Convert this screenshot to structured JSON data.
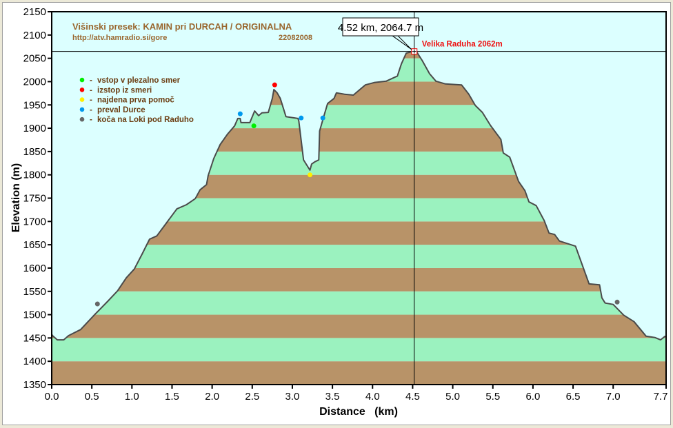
{
  "chart_data": {
    "type": "area",
    "title": "Višinski presek:  KAMIN pri DURCAH / ORIGINALNA",
    "subtitle_url": "http://atv.hamradio.si/gore",
    "subtitle_date": "22082008",
    "xlabel": "Distance   (km)",
    "ylabel": "Elevation (m)",
    "xlim": [
      0,
      7.66
    ],
    "ylim": [
      1350,
      2150
    ],
    "x_ticks": [
      "0.0",
      "0.5",
      "1.0",
      "1.5",
      "2.0",
      "2.5",
      "3.0",
      "3.5",
      "4.0",
      "4.5",
      "5.0",
      "5.5",
      "6.0",
      "6.5",
      "7.0",
      "7.7"
    ],
    "x_tick_values": [
      0,
      0.5,
      1,
      1.5,
      2,
      2.5,
      3,
      3.5,
      4,
      4.5,
      5,
      5.5,
      6,
      6.5,
      7,
      7.66
    ],
    "y_ticks": [
      1350,
      1400,
      1450,
      1500,
      1550,
      1600,
      1650,
      1700,
      1750,
      1800,
      1850,
      1900,
      1950,
      2000,
      2050,
      2100,
      2150
    ],
    "band_step": 50,
    "colors": {
      "plot_bg": "#dcffff",
      "band_a": "#b89368",
      "band_b": "#9bf2bf",
      "line": "#4a4a4a"
    },
    "profile": [
      [
        0,
        1458
      ],
      [
        0.01,
        1455
      ],
      [
        0.07,
        1446
      ],
      [
        0.15,
        1446
      ],
      [
        0.21,
        1455
      ],
      [
        0.36,
        1468
      ],
      [
        0.53,
        1499
      ],
      [
        0.7,
        1529
      ],
      [
        0.82,
        1551
      ],
      [
        0.93,
        1579
      ],
      [
        1.03,
        1598
      ],
      [
        1.13,
        1631
      ],
      [
        1.22,
        1662
      ],
      [
        1.31,
        1669
      ],
      [
        1.44,
        1699
      ],
      [
        1.56,
        1727
      ],
      [
        1.68,
        1736
      ],
      [
        1.79,
        1749
      ],
      [
        1.85,
        1768
      ],
      [
        1.93,
        1779
      ],
      [
        1.95,
        1798
      ],
      [
        2.02,
        1835
      ],
      [
        2.1,
        1865
      ],
      [
        2.19,
        1887
      ],
      [
        2.28,
        1905
      ],
      [
        2.32,
        1921
      ],
      [
        2.35,
        1921
      ],
      [
        2.36,
        1912
      ],
      [
        2.47,
        1912
      ],
      [
        2.53,
        1937
      ],
      [
        2.58,
        1927
      ],
      [
        2.62,
        1933
      ],
      [
        2.7,
        1934
      ],
      [
        2.75,
        1964
      ],
      [
        2.77,
        1983
      ],
      [
        2.81,
        1976
      ],
      [
        2.85,
        1964
      ],
      [
        2.92,
        1925
      ],
      [
        3.07,
        1921
      ],
      [
        3.08,
        1916
      ],
      [
        3.14,
        1832
      ],
      [
        3.22,
        1810
      ],
      [
        3.24,
        1823
      ],
      [
        3.28,
        1828
      ],
      [
        3.33,
        1832
      ],
      [
        3.34,
        1894
      ],
      [
        3.39,
        1924
      ],
      [
        3.44,
        1953
      ],
      [
        3.52,
        1964
      ],
      [
        3.55,
        1976
      ],
      [
        3.65,
        1973
      ],
      [
        3.76,
        1971
      ],
      [
        3.91,
        1993
      ],
      [
        4.02,
        1998
      ],
      [
        4.17,
        2001
      ],
      [
        4.31,
        2012
      ],
      [
        4.36,
        2038
      ],
      [
        4.42,
        2061
      ],
      [
        4.48,
        2064
      ],
      [
        4.52,
        2065
      ],
      [
        4.55,
        2064
      ],
      [
        4.62,
        2045
      ],
      [
        4.71,
        2017
      ],
      [
        4.79,
        2001
      ],
      [
        4.91,
        1995
      ],
      [
        5.11,
        1993
      ],
      [
        5.2,
        1973
      ],
      [
        5.28,
        1949
      ],
      [
        5.37,
        1934
      ],
      [
        5.47,
        1906
      ],
      [
        5.6,
        1876
      ],
      [
        5.63,
        1847
      ],
      [
        5.71,
        1838
      ],
      [
        5.82,
        1786
      ],
      [
        5.9,
        1766
      ],
      [
        5.95,
        1742
      ],
      [
        6.04,
        1734
      ],
      [
        6.14,
        1702
      ],
      [
        6.2,
        1675
      ],
      [
        6.27,
        1672
      ],
      [
        6.33,
        1658
      ],
      [
        6.53,
        1647
      ],
      [
        6.7,
        1566
      ],
      [
        6.83,
        1564
      ],
      [
        6.86,
        1536
      ],
      [
        6.9,
        1525
      ],
      [
        7.0,
        1522
      ],
      [
        7.13,
        1499
      ],
      [
        7.26,
        1485
      ],
      [
        7.41,
        1454
      ],
      [
        7.52,
        1451
      ],
      [
        7.59,
        1446
      ],
      [
        7.65,
        1454
      ]
    ],
    "markers": [
      {
        "x": 0.57,
        "y": 1523,
        "kind": "koca"
      },
      {
        "x": 2.35,
        "y": 1931,
        "kind": "preval"
      },
      {
        "x": 2.52,
        "y": 1905,
        "kind": "vstop"
      },
      {
        "x": 2.78,
        "y": 1993,
        "kind": "izstop"
      },
      {
        "x": 3.11,
        "y": 1922,
        "kind": "preval"
      },
      {
        "x": 3.22,
        "y": 1800,
        "kind": "pomoc"
      },
      {
        "x": 3.38,
        "y": 1922,
        "kind": "preval"
      },
      {
        "x": 7.05,
        "y": 1527,
        "kind": "koca"
      }
    ],
    "legend": [
      {
        "kind": "vstop",
        "label": "vstop v plezalno smer",
        "color": "#00ee00"
      },
      {
        "kind": "izstop",
        "label": "izstop iz smeri",
        "color": "#ff0000"
      },
      {
        "kind": "pomoc",
        "label": "najdena prva pomoč",
        "color": "#ffee00"
      },
      {
        "kind": "preval",
        "label": "preval Durce",
        "color": "#0099ee"
      },
      {
        "kind": "koca",
        "label": "koča na Loki pod Raduho",
        "color": "#666666"
      }
    ],
    "legend_dash": "-",
    "legend_placement": "top-left",
    "cursor": {
      "x": 4.52,
      "y": 2064.7,
      "label": "4.52 km, 2064.7 m"
    },
    "annotation": {
      "x": 4.52,
      "y": 2064.7,
      "label": "Velika Raduha 2062m",
      "color": "#ee1111"
    }
  }
}
